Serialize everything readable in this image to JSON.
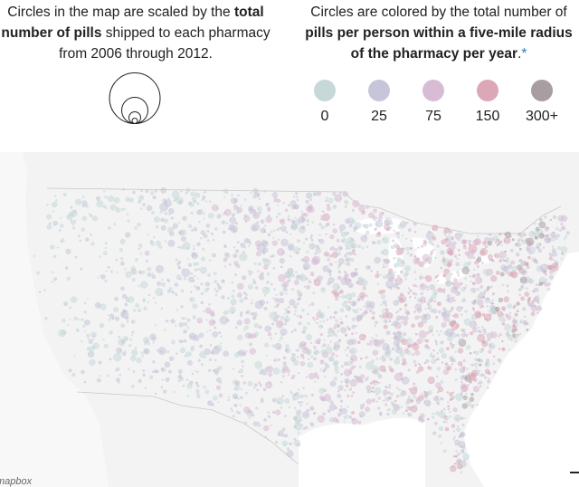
{
  "size_legend": {
    "text_before": "Circles in the map are scaled by the ",
    "bold": "total number of pills",
    "text_after": " shipped to each pharmacy from 2006 through 2012."
  },
  "color_legend": {
    "text_before": "Circles are colored by the total number of ",
    "bold": "pills per person within a five-mile radius of the pharmacy per year",
    "text_after": ".",
    "asterisk": "*",
    "swatches": [
      {
        "label": "0",
        "color": "#c6d8d8"
      },
      {
        "label": "25",
        "color": "#c7c5d9"
      },
      {
        "label": "75",
        "color": "#d8bbd4"
      },
      {
        "label": "150",
        "color": "#dca7b7"
      },
      {
        "label": "300+",
        "color": "#a89ea2"
      }
    ]
  },
  "map": {
    "attribution": "mapbox",
    "land_color": "#f3f3f3",
    "water_color": "#ffffff",
    "border_color": "#c8c8c8"
  }
}
